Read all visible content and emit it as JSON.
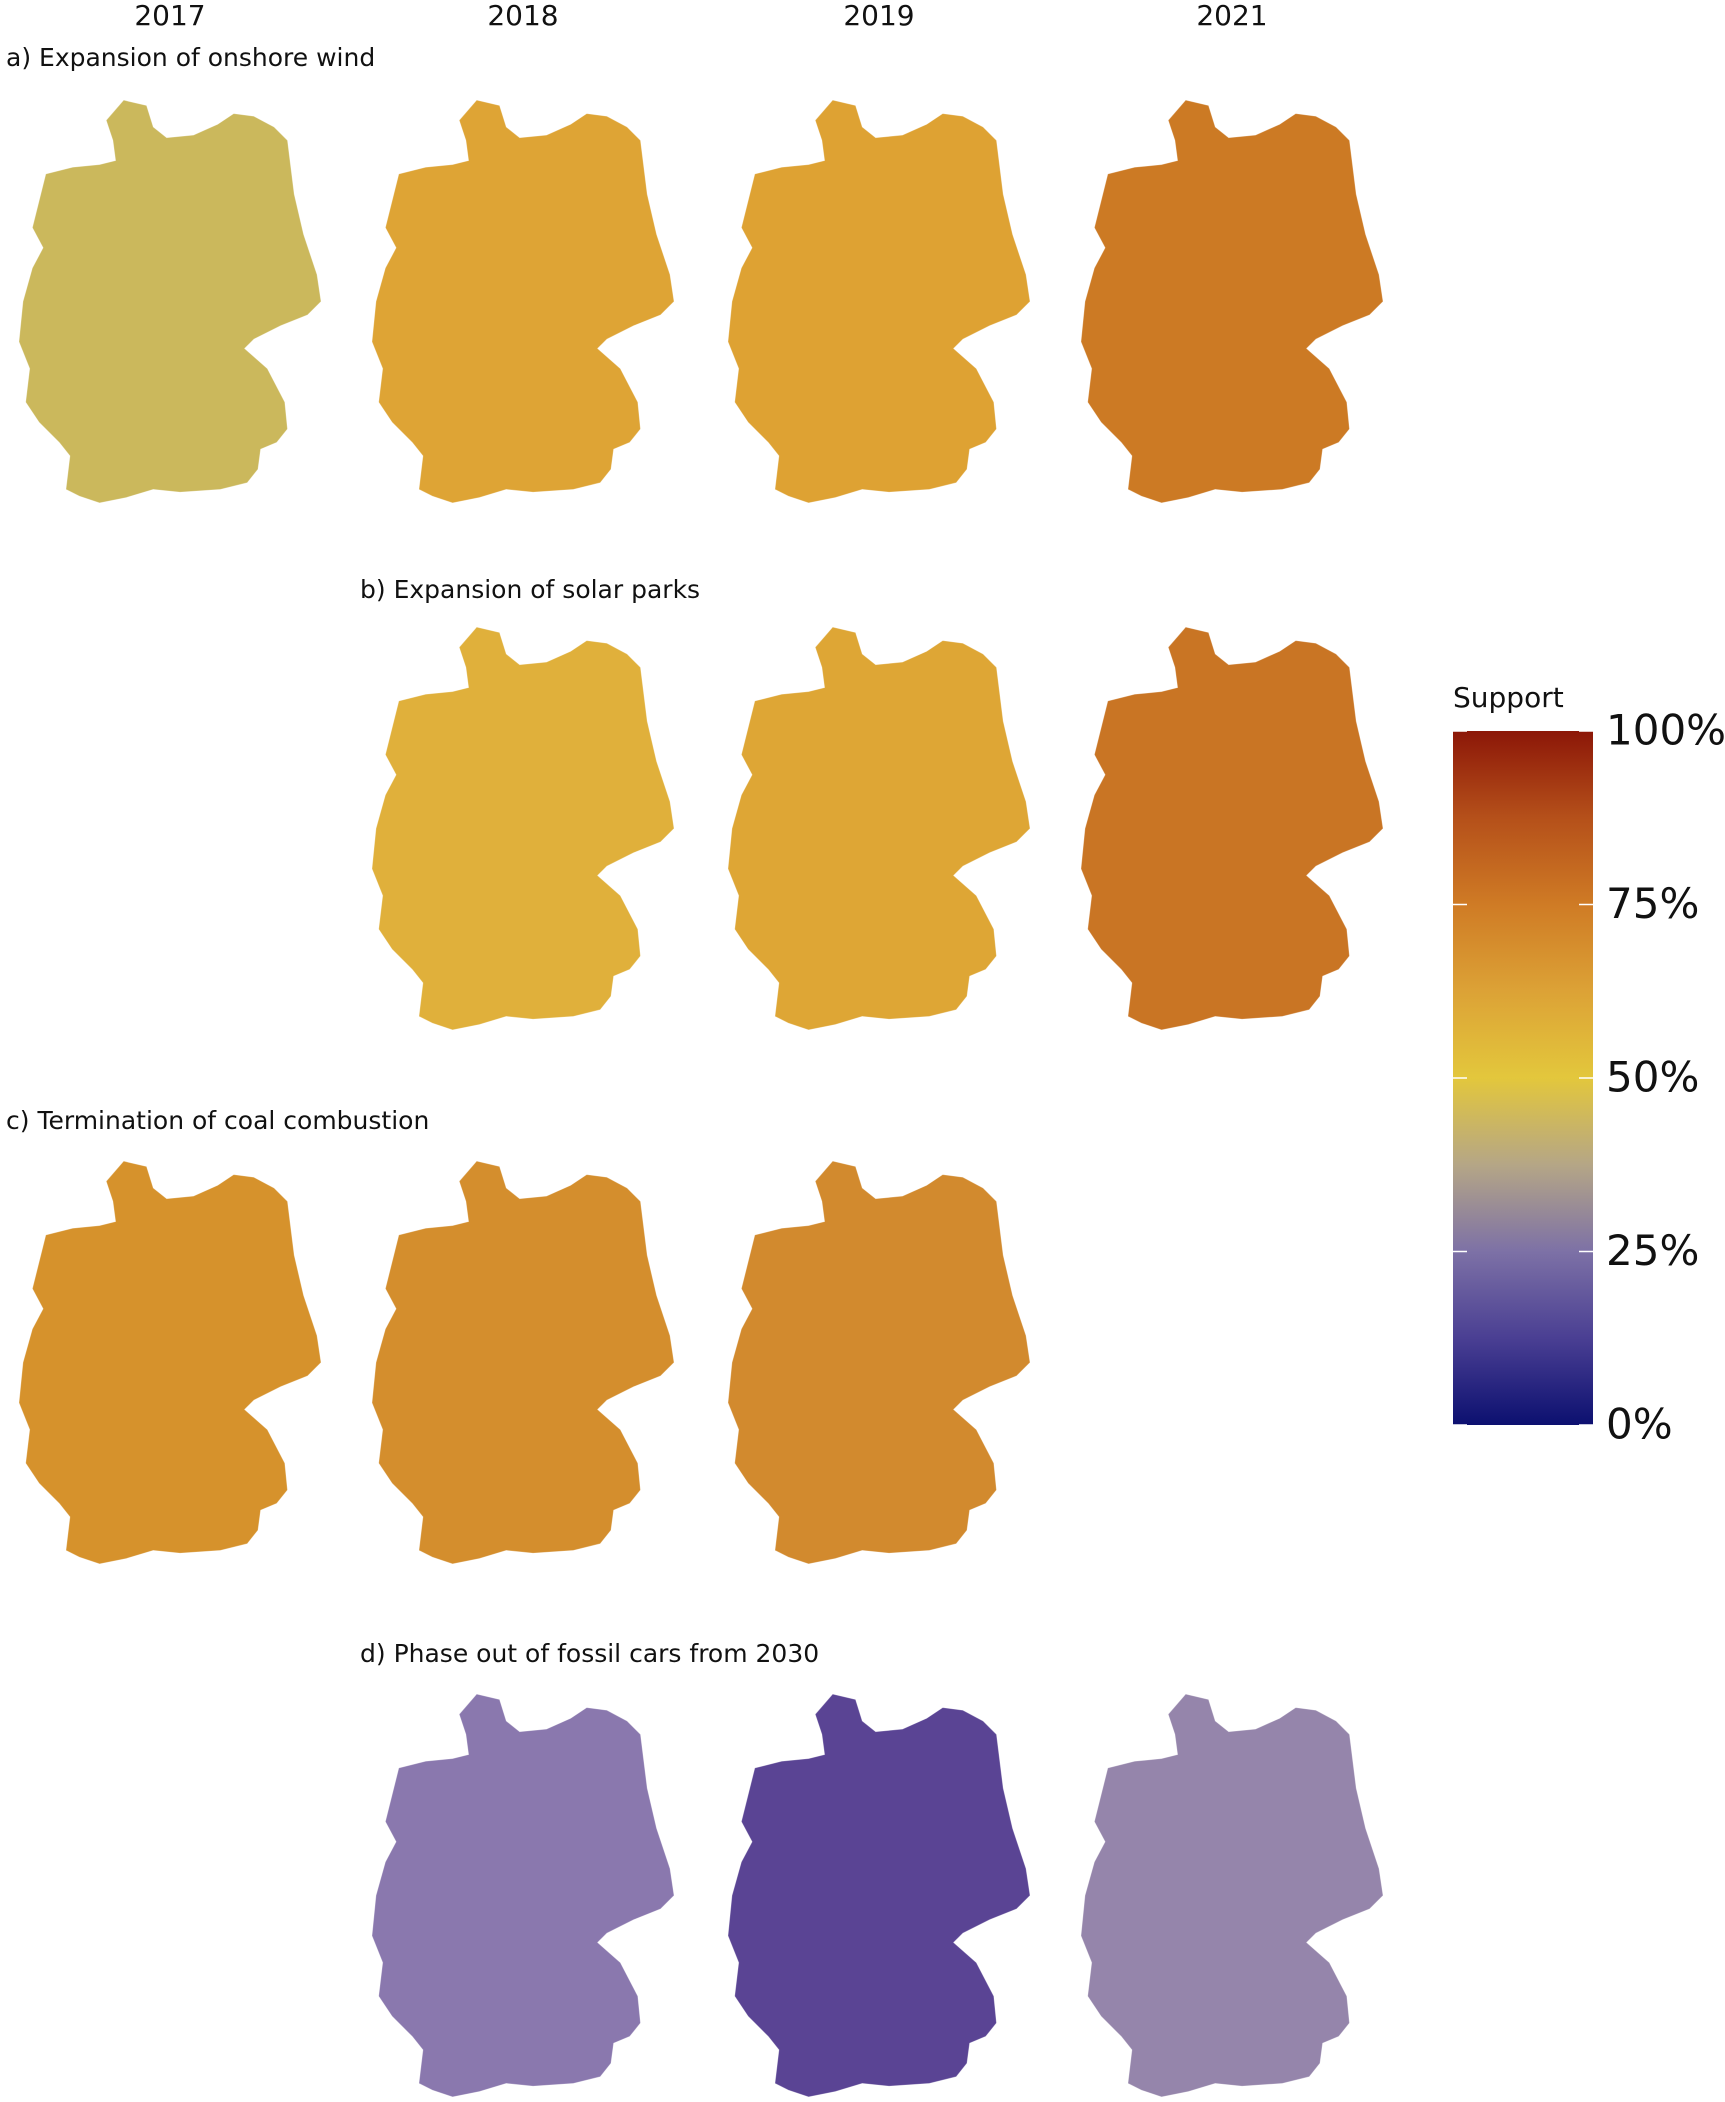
{
  "column_headers": [
    "2017",
    "2018",
    "2019",
    "2021"
  ],
  "panels": [
    {
      "title": "a) Expansion of onshore wind",
      "map_colors": [
        "#cbb85c",
        "#dea435",
        "#dea233",
        "#cc7a24"
      ]
    },
    {
      "title": "b) Expansion of solar parks",
      "map_colors": [
        null,
        "#e0b03b",
        "#dea635",
        "#c97524"
      ]
    },
    {
      "title": "c) Termination of coal combustion",
      "map_colors": [
        "#d6922c",
        "#d48e2d",
        "#d28a2e",
        null
      ]
    },
    {
      "title": "d) Phase out of fossil cars from 2030",
      "map_colors": [
        null,
        "#8a78ae",
        "#5a4494",
        "#9585ab"
      ]
    }
  ],
  "legend": {
    "title": "Support",
    "lim": [
      0,
      100
    ],
    "ticks": [
      {
        "value": 0,
        "label": "0%"
      },
      {
        "value": 25,
        "label": "25%"
      },
      {
        "value": 50,
        "label": "50%"
      },
      {
        "value": 75,
        "label": "75%"
      },
      {
        "value": 100,
        "label": "100%"
      }
    ],
    "colors": [
      "#0c1070",
      "#4a3f93",
      "#7d71a6",
      "#b5a686",
      "#e3c73c",
      "#dca236",
      "#cf7b25",
      "#b5501a",
      "#8c1708"
    ]
  }
}
